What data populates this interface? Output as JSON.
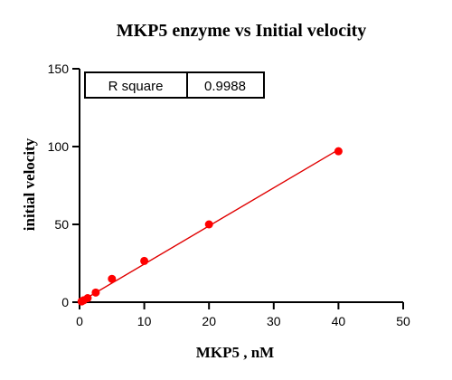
{
  "chart_data": {
    "type": "scatter",
    "title": "MKP5  enzyme vs Initial velocity",
    "xlabel": "MKP5 , nM",
    "ylabel": "initial velocity",
    "xlim": [
      0,
      50
    ],
    "ylim": [
      0,
      150
    ],
    "xticks": [
      0,
      10,
      20,
      30,
      40,
      50
    ],
    "yticks": [
      0,
      50,
      100,
      150
    ],
    "grid": false,
    "points": [
      {
        "x": 0.31,
        "y": 0.5
      },
      {
        "x": 0.63,
        "y": 1.2
      },
      {
        "x": 1.25,
        "y": 2.6
      },
      {
        "x": 2.5,
        "y": 6.2
      },
      {
        "x": 5,
        "y": 15
      },
      {
        "x": 10,
        "y": 26.5
      },
      {
        "x": 20,
        "y": 50
      },
      {
        "x": 40,
        "y": 97
      }
    ],
    "fit_line": {
      "x": [
        0,
        40
      ],
      "y": [
        0,
        98
      ]
    },
    "marker_color": "#ff0000",
    "line_color": "#e00000",
    "stats": {
      "label": "R square",
      "value": "0.9988"
    }
  }
}
